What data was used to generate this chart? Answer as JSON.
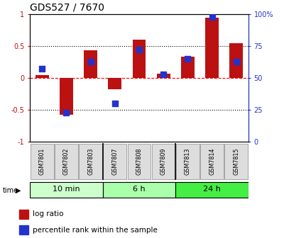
{
  "title": "GDS527 / 7670",
  "samples": [
    "GSM7801",
    "GSM7802",
    "GSM7803",
    "GSM7807",
    "GSM7808",
    "GSM7809",
    "GSM7813",
    "GSM7814",
    "GSM7815"
  ],
  "log_ratio": [
    0.05,
    -0.58,
    0.43,
    -0.18,
    0.6,
    0.07,
    0.33,
    0.95,
    0.55
  ],
  "percentile_rank": [
    57,
    23,
    63,
    30,
    72,
    53,
    65,
    98,
    63
  ],
  "bar_color": "#bb1111",
  "dot_color": "#2233cc",
  "left_ylim": [
    -1,
    1
  ],
  "right_ylim": [
    0,
    100
  ],
  "left_yticks": [
    -1,
    -0.5,
    0,
    0.5,
    1
  ],
  "left_yticklabels": [
    "-1",
    "-0.5",
    "0",
    "0.5",
    "1"
  ],
  "right_yticks": [
    0,
    25,
    50,
    75,
    100
  ],
  "right_yticklabels": [
    "0",
    "25",
    "50",
    "75",
    "100%"
  ],
  "hlines_dotted": [
    -0.5,
    0.5
  ],
  "hline_dashed": 0,
  "groups": [
    {
      "label": "10 min",
      "start": 0,
      "end": 3,
      "color": "#ccffcc"
    },
    {
      "label": "6 h",
      "start": 3,
      "end": 6,
      "color": "#aaffaa"
    },
    {
      "label": "24 h",
      "start": 6,
      "end": 9,
      "color": "#44ee44"
    }
  ],
  "legend_log": "log ratio",
  "legend_pct": "percentile rank within the sample",
  "bg_color": "#ffffff",
  "bar_width": 0.55,
  "dot_size": 28,
  "n": 9
}
